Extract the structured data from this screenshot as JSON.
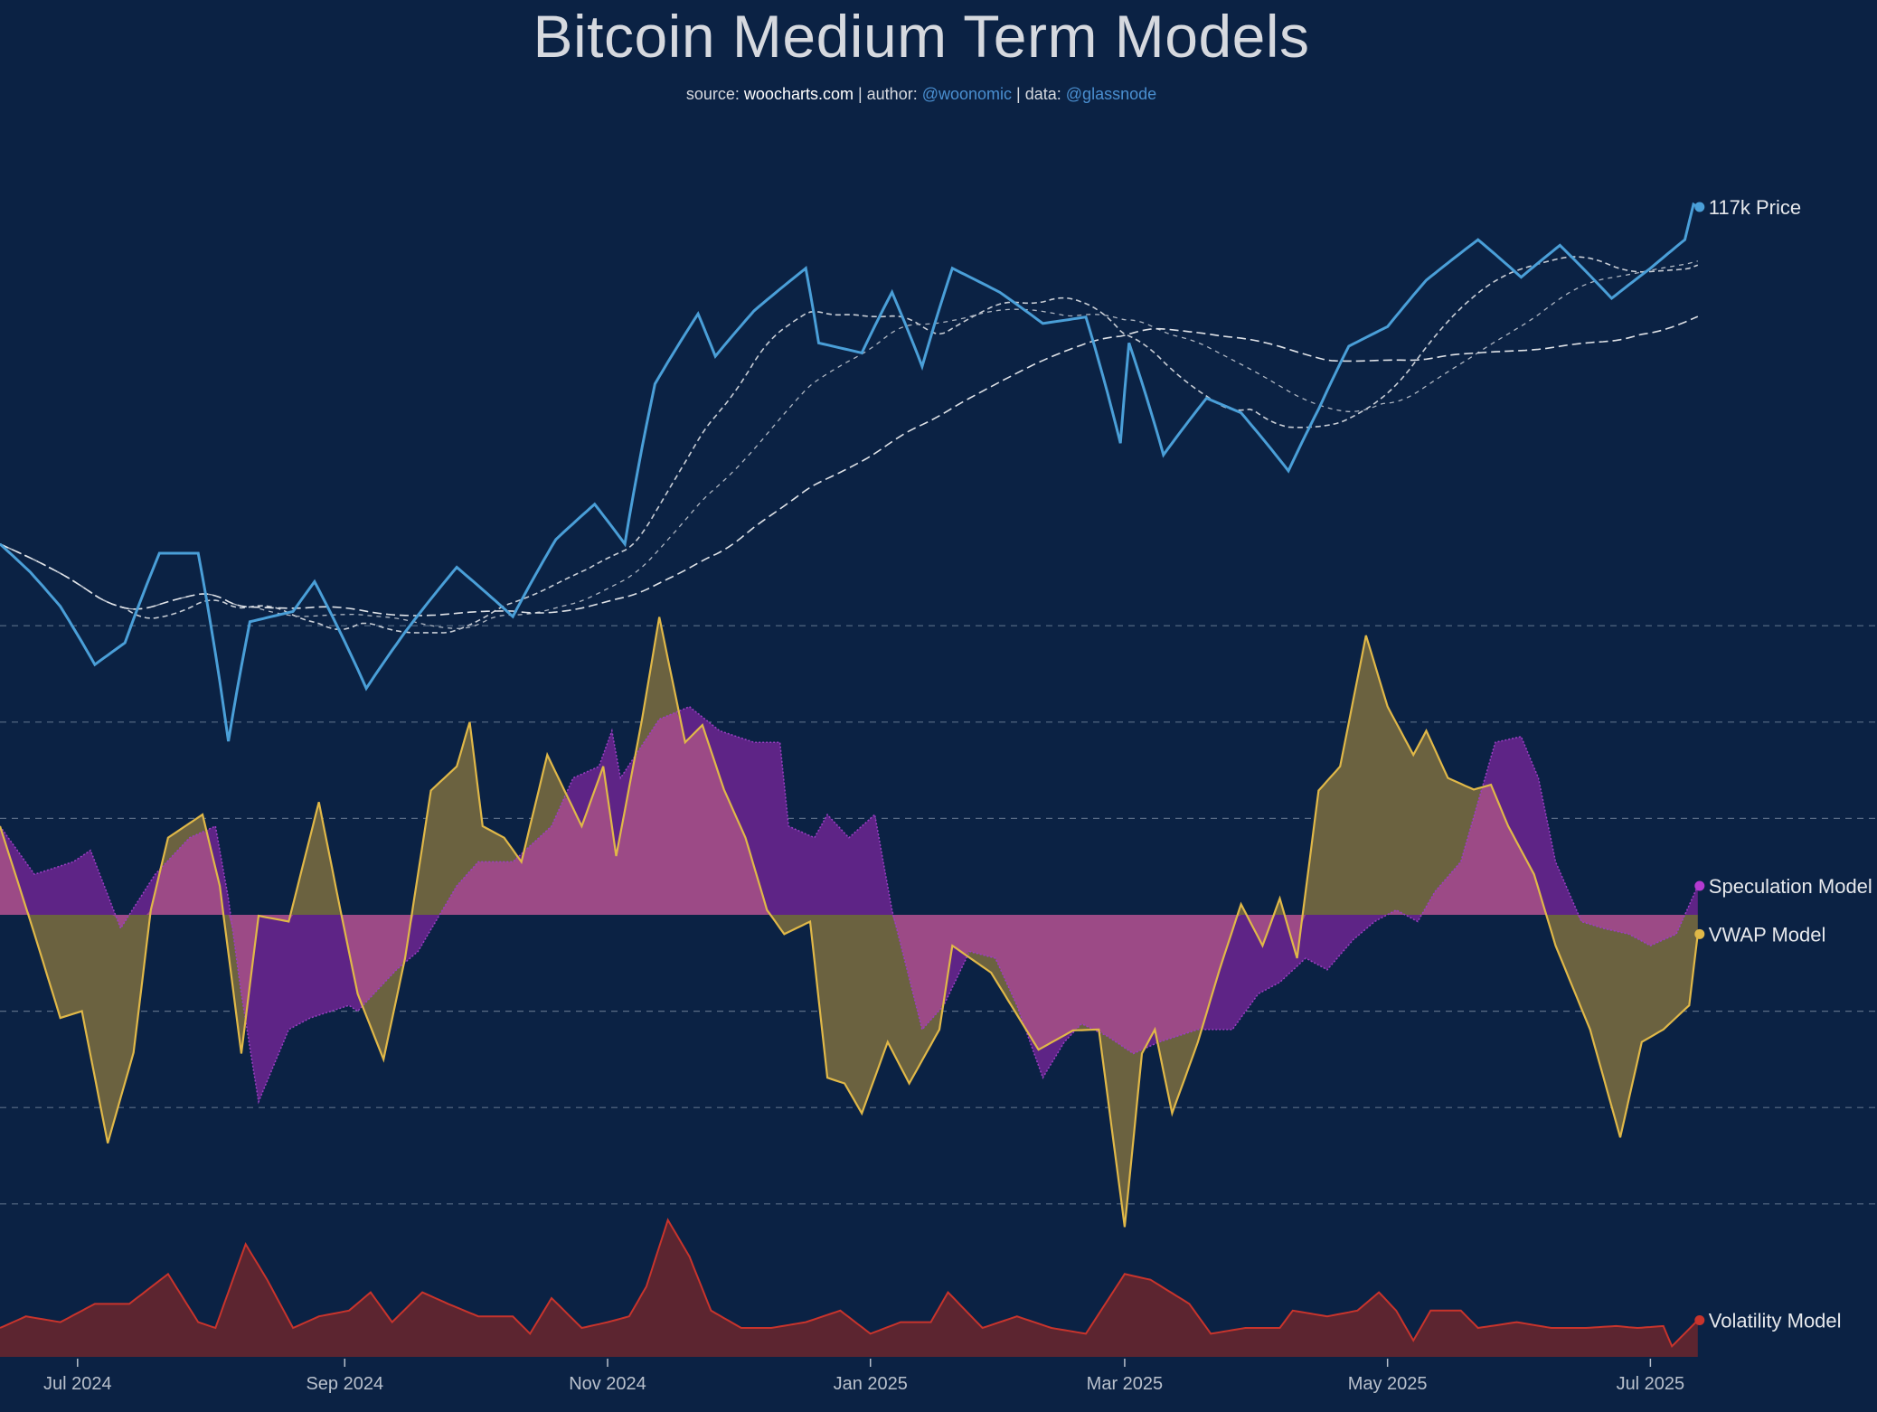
{
  "header": {
    "title": "Bitcoin Medium Term Models",
    "source_label": "source:",
    "source": "woocharts.com",
    "author_label": "| author:",
    "author": "@woonomic",
    "data_label": "| data:",
    "data_source": "@glassnode"
  },
  "chart_data": {
    "type": "line",
    "title": "Bitcoin Medium Term Models",
    "x_ticks": [
      "Jul 2024",
      "Sep 2024",
      "Nov 2024",
      "Jan 2025",
      "Mar 2025",
      "May 2025",
      "Jul 2025"
    ],
    "x_tick_dates": [
      "2024-07-01",
      "2024-09-01",
      "2024-11-01",
      "2025-01-01",
      "2025-03-01",
      "2025-05-01",
      "2025-07-01"
    ],
    "x_range": [
      "2024-06-13",
      "2025-07-12"
    ],
    "grid": "horizontal dashed",
    "price_scale": "log",
    "colors": {
      "background": "#0b2244",
      "price": "#4a9fd8",
      "vwap": "#e0b848",
      "speculation": "#b43ad0",
      "overlap": "#9c4a86",
      "volatility": "#c8342c"
    },
    "price": {
      "label": "117k Price",
      "dates": [
        "2024-06-13",
        "2024-06-20",
        "2024-06-27",
        "2024-07-05",
        "2024-07-12",
        "2024-07-20",
        "2024-07-29",
        "2024-08-05",
        "2024-08-10",
        "2024-08-20",
        "2024-08-25",
        "2024-09-06",
        "2024-09-15",
        "2024-09-27",
        "2024-10-10",
        "2024-10-20",
        "2024-10-29",
        "2024-11-05",
        "2024-11-12",
        "2024-11-22",
        "2024-11-26",
        "2024-12-05",
        "2024-12-17",
        "2024-12-20",
        "2024-12-30",
        "2025-01-06",
        "2025-01-13",
        "2025-01-20",
        "2025-01-31",
        "2025-02-10",
        "2025-02-20",
        "2025-02-28",
        "2025-03-02",
        "2025-03-10",
        "2025-03-20",
        "2025-03-28",
        "2025-04-08",
        "2025-04-15",
        "2025-04-22",
        "2025-05-01",
        "2025-05-10",
        "2025-05-22",
        "2025-06-01",
        "2025-06-10",
        "2025-06-22",
        "2025-07-01",
        "2025-07-09",
        "2025-07-11",
        "2025-07-12"
      ],
      "values": [
        68000,
        65000,
        61500,
        56000,
        58000,
        67000,
        67000,
        49500,
        60000,
        61000,
        64000,
        53900,
        59000,
        65500,
        60500,
        68500,
        72500,
        68000,
        88000,
        98500,
        92000,
        99000,
        106000,
        94000,
        92500,
        102000,
        90500,
        106000,
        102000,
        97000,
        98000,
        80000,
        94000,
        78500,
        86000,
        84000,
        76500,
        84500,
        93500,
        96500,
        104000,
        111000,
        104500,
        110000,
        101000,
        106000,
        111000,
        117500,
        117000
      ]
    },
    "series": [
      {
        "name": "Speculation Model",
        "dates": [
          "2024-06-13",
          "2024-06-21",
          "2024-06-30",
          "2024-07-04",
          "2024-07-11",
          "2024-07-19",
          "2024-07-27",
          "2024-08-02",
          "2024-08-05",
          "2024-08-08",
          "2024-08-12",
          "2024-08-19",
          "2024-08-24",
          "2024-09-02",
          "2024-09-04",
          "2024-09-13",
          "2024-09-18",
          "2024-09-27",
          "2024-10-02",
          "2024-10-10",
          "2024-10-19",
          "2024-10-24",
          "2024-10-30",
          "2024-11-02",
          "2024-11-04",
          "2024-11-13",
          "2024-11-20",
          "2024-11-27",
          "2024-12-05",
          "2024-12-11",
          "2024-12-13",
          "2024-12-19",
          "2024-12-22",
          "2024-12-27",
          "2025-01-02",
          "2025-01-06",
          "2025-01-13",
          "2025-01-18",
          "2025-01-24",
          "2025-01-30",
          "2025-02-04",
          "2025-02-10",
          "2025-02-15",
          "2025-02-19",
          "2025-02-25",
          "2025-03-03",
          "2025-03-09",
          "2025-03-18",
          "2025-03-26",
          "2025-04-01",
          "2025-04-06",
          "2025-04-12",
          "2025-04-17",
          "2025-04-23",
          "2025-04-28",
          "2025-05-03",
          "2025-05-08",
          "2025-05-12",
          "2025-05-18",
          "2025-05-26",
          "2025-06-01",
          "2025-06-05",
          "2025-06-09",
          "2025-06-15",
          "2025-06-20",
          "2025-06-26",
          "2025-07-01",
          "2025-07-07",
          "2025-07-12"
        ],
        "values": [
          0.92,
          0.42,
          0.55,
          0.67,
          -0.14,
          0.42,
          0.8,
          0.92,
          0.17,
          -0.82,
          -1.94,
          -1.19,
          -1.07,
          -0.94,
          -1.0,
          -0.57,
          -0.38,
          0.3,
          0.55,
          0.55,
          0.92,
          1.42,
          1.54,
          1.91,
          1.42,
          2.03,
          2.16,
          1.91,
          1.79,
          1.79,
          0.92,
          0.8,
          1.04,
          0.8,
          1.04,
          0.05,
          -1.19,
          -0.94,
          -0.38,
          -0.45,
          -0.94,
          -1.69,
          -1.32,
          -1.13,
          -1.26,
          -1.44,
          -1.32,
          -1.19,
          -1.19,
          -0.82,
          -0.7,
          -0.45,
          -0.57,
          -0.26,
          -0.07,
          0.05,
          -0.07,
          0.24,
          0.55,
          1.79,
          1.85,
          1.42,
          0.55,
          -0.07,
          -0.14,
          -0.2,
          -0.32,
          -0.2,
          0.3
        ]
      },
      {
        "name": "VWAP Model",
        "dates": [
          "2024-06-13",
          "2024-06-21",
          "2024-06-27",
          "2024-07-02",
          "2024-07-08",
          "2024-07-14",
          "2024-07-18",
          "2024-07-22",
          "2024-07-26",
          "2024-07-30",
          "2024-08-03",
          "2024-08-08",
          "2024-08-12",
          "2024-08-19",
          "2024-08-26",
          "2024-08-31",
          "2024-09-04",
          "2024-09-10",
          "2024-09-15",
          "2024-09-21",
          "2024-09-27",
          "2024-09-30",
          "2024-10-03",
          "2024-10-08",
          "2024-10-12",
          "2024-10-18",
          "2024-10-22",
          "2024-10-26",
          "2024-10-31",
          "2024-11-03",
          "2024-11-09",
          "2024-11-13",
          "2024-11-19",
          "2024-11-23",
          "2024-11-28",
          "2024-12-03",
          "2024-12-08",
          "2024-12-12",
          "2024-12-18",
          "2024-12-22",
          "2024-12-26",
          "2024-12-30",
          "2025-01-05",
          "2025-01-10",
          "2025-01-17",
          "2025-01-20",
          "2025-01-29",
          "2025-02-09",
          "2025-02-17",
          "2025-02-23",
          "2025-03-01",
          "2025-03-05",
          "2025-03-08",
          "2025-03-12",
          "2025-03-18",
          "2025-03-23",
          "2025-03-28",
          "2025-04-02",
          "2025-04-06",
          "2025-04-10",
          "2025-04-15",
          "2025-04-20",
          "2025-04-26",
          "2025-05-01",
          "2025-05-07",
          "2025-05-10",
          "2025-05-15",
          "2025-05-21",
          "2025-05-25",
          "2025-05-29",
          "2025-06-04",
          "2025-06-09",
          "2025-06-17",
          "2025-06-24",
          "2025-06-29",
          "2025-07-04",
          "2025-07-10",
          "2025-07-12"
        ],
        "values": [
          0.92,
          -0.2,
          -1.07,
          -1.0,
          -2.37,
          -1.43,
          0.05,
          0.8,
          0.92,
          1.04,
          0.3,
          -1.44,
          -0.01,
          -0.07,
          1.17,
          0.05,
          -0.82,
          -1.5,
          -0.45,
          1.29,
          1.54,
          2.0,
          0.92,
          0.8,
          0.55,
          1.66,
          1.29,
          0.92,
          1.54,
          0.61,
          2.03,
          3.09,
          1.79,
          1.97,
          1.3,
          0.8,
          0.05,
          -0.2,
          -0.07,
          -1.69,
          -1.75,
          -2.06,
          -1.32,
          -1.75,
          -1.19,
          -0.32,
          -0.6,
          -1.4,
          -1.2,
          -1.19,
          -3.24,
          -1.44,
          -1.19,
          -2.06,
          -1.32,
          -0.57,
          0.11,
          -0.32,
          0.17,
          -0.45,
          1.29,
          1.54,
          2.9,
          2.16,
          1.66,
          1.91,
          1.42,
          1.3,
          1.35,
          0.92,
          0.42,
          -0.32,
          -1.19,
          -2.31,
          -1.32,
          -1.19,
          -0.94,
          -0.2
        ]
      },
      {
        "name": "Volatility Model",
        "dates": [
          "2024-06-13",
          "2024-06-19",
          "2024-06-27",
          "2024-07-05",
          "2024-07-13",
          "2024-07-22",
          "2024-07-29",
          "2024-08-02",
          "2024-08-09",
          "2024-08-14",
          "2024-08-20",
          "2024-08-26",
          "2024-09-02",
          "2024-09-07",
          "2024-09-12",
          "2024-09-19",
          "2024-09-25",
          "2024-10-02",
          "2024-10-10",
          "2024-10-14",
          "2024-10-19",
          "2024-10-26",
          "2024-11-01",
          "2024-11-06",
          "2024-11-10",
          "2024-11-15",
          "2024-11-20",
          "2024-11-25",
          "2024-12-02",
          "2024-12-09",
          "2024-12-17",
          "2024-12-25",
          "2025-01-01",
          "2025-01-08",
          "2025-01-15",
          "2025-01-19",
          "2025-01-27",
          "2025-02-04",
          "2025-02-12",
          "2025-02-20",
          "2025-03-01",
          "2025-03-07",
          "2025-03-16",
          "2025-03-21",
          "2025-03-29",
          "2025-04-06",
          "2025-04-09",
          "2025-04-17",
          "2025-04-24",
          "2025-04-29",
          "2025-05-03",
          "2025-05-07",
          "2025-05-11",
          "2025-05-18",
          "2025-05-22",
          "2025-05-31",
          "2025-06-08",
          "2025-06-16",
          "2025-06-23",
          "2025-06-28",
          "2025-07-04",
          "2025-07-06",
          "2025-07-12"
        ],
        "values": [
          0.3,
          0.42,
          0.36,
          0.55,
          0.55,
          0.86,
          0.36,
          0.3,
          1.17,
          0.8,
          0.3,
          0.42,
          0.48,
          0.67,
          0.36,
          0.67,
          0.55,
          0.42,
          0.42,
          0.24,
          0.61,
          0.3,
          0.36,
          0.42,
          0.73,
          1.42,
          1.04,
          0.48,
          0.3,
          0.3,
          0.36,
          0.48,
          0.24,
          0.36,
          0.36,
          0.67,
          0.3,
          0.42,
          0.3,
          0.24,
          0.86,
          0.8,
          0.55,
          0.24,
          0.3,
          0.3,
          0.48,
          0.42,
          0.48,
          0.67,
          0.48,
          0.17,
          0.48,
          0.48,
          0.3,
          0.36,
          0.3,
          0.3,
          0.32,
          0.3,
          0.32,
          0.11,
          0.38
        ]
      }
    ]
  }
}
